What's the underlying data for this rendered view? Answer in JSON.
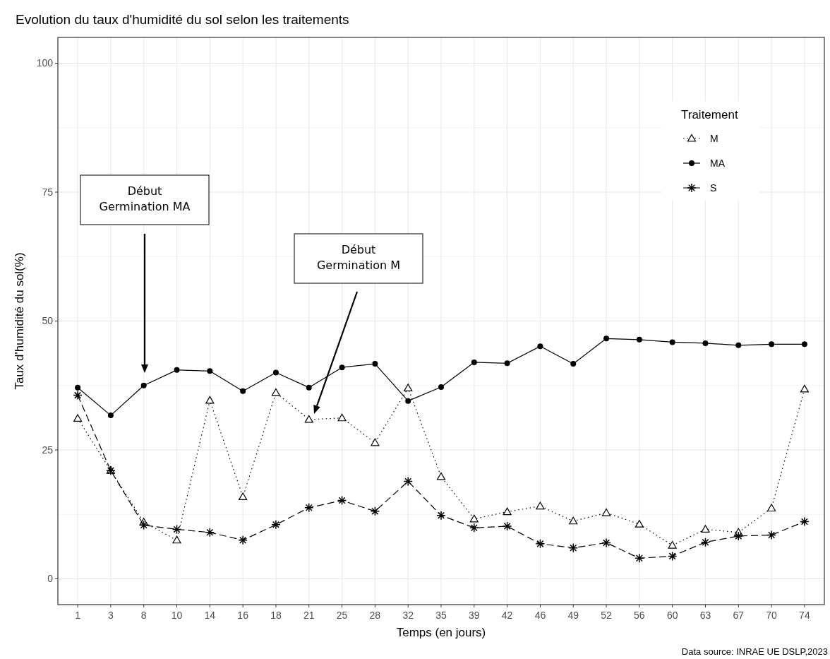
{
  "chart_data": {
    "type": "line",
    "title": "Evolution du taux d'humidité du sol selon les traitements",
    "xlabel": "Temps (en jours)",
    "ylabel": "Taux d'humidité du sol(%)",
    "legend_title": "Traitement",
    "categories": [
      "1",
      "3",
      "8",
      "10",
      "14",
      "16",
      "18",
      "21",
      "25",
      "28",
      "32",
      "35",
      "39",
      "42",
      "46",
      "49",
      "52",
      "56",
      "60",
      "63",
      "67",
      "70",
      "74"
    ],
    "series": [
      {
        "name": "M",
        "color": "#000000",
        "marker": "triangle",
        "line_style": "dotted",
        "values": [
          31.1,
          21,
          11,
          7.5,
          34.6,
          15.9,
          36.1,
          30.9,
          31.2,
          26.4,
          37,
          19.8,
          11.6,
          13,
          14.1,
          11.2,
          12.8,
          10.6,
          6.5,
          9.6,
          9,
          13.7,
          36.8
        ]
      },
      {
        "name": "MA",
        "color": "#000000",
        "marker": "circle",
        "line_style": "solid",
        "values": [
          37.1,
          31.7,
          37.5,
          40.5,
          40.3,
          36.4,
          40,
          37.1,
          41,
          41.7,
          34.5,
          37.2,
          42,
          41.8,
          45.1,
          41.7,
          46.6,
          46.4,
          45.9,
          45.7,
          45.3,
          45.5,
          45.5
        ]
      },
      {
        "name": "S",
        "color": "#000000",
        "marker": "star",
        "line_style": "dashed",
        "values": [
          35.6,
          21,
          10.4,
          9.6,
          9,
          7.5,
          10.5,
          13.8,
          15.2,
          13.1,
          18.9,
          12.3,
          9.9,
          10.2,
          6.8,
          6,
          7,
          4,
          4.4,
          7.1,
          8.3,
          8.5,
          11.1
        ]
      }
    ],
    "ylim": [
      -5,
      105
    ],
    "yticks": [
      0,
      25,
      50,
      75,
      100
    ],
    "grid": true,
    "legend": "top right",
    "annotations": [
      "Début\nGermination MA",
      "Début\nGermination M",
      "Data source: INRAE UE DSLP,2023"
    ]
  }
}
